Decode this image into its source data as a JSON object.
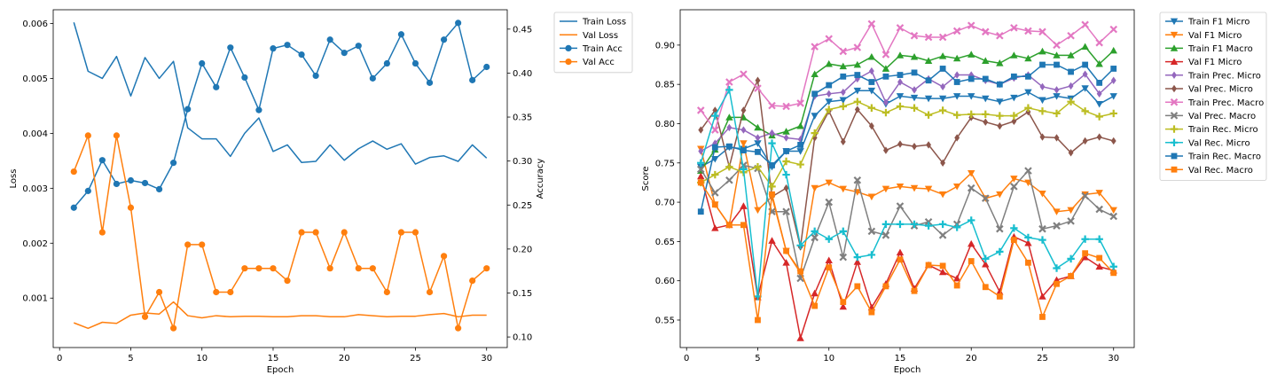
{
  "chart_data": [
    {
      "type": "line",
      "xlabel": "Epoch",
      "ylabel": "Loss",
      "y2label": "Accuracy",
      "xlim": [
        -0.45,
        31.45
      ],
      "ylim": [
        0.0001,
        0.00625
      ],
      "y2lim": [
        0.088,
        0.472
      ],
      "x_ticks": [
        0,
        5,
        10,
        15,
        20,
        25,
        30
      ],
      "y_ticks": [
        0.001,
        0.002,
        0.003,
        0.004,
        0.005,
        0.006
      ],
      "y_tick_labels": [
        "0.001",
        "0.002",
        "0.003",
        "0.004",
        "0.005",
        "0.006"
      ],
      "y2_ticks": [
        0.1,
        0.15,
        0.2,
        0.25,
        0.3,
        0.35,
        0.4,
        0.45
      ],
      "y2_tick_labels": [
        "0.10",
        "0.15",
        "0.20",
        "0.25",
        "0.30",
        "0.35",
        "0.40",
        "0.45"
      ],
      "legend_position": "outside right, top",
      "grid": false,
      "x": [
        1,
        2,
        3,
        4,
        5,
        6,
        7,
        8,
        9,
        10,
        11,
        12,
        13,
        14,
        15,
        16,
        17,
        18,
        19,
        20,
        21,
        22,
        23,
        24,
        25,
        26,
        27,
        28,
        29,
        30
      ],
      "series": [
        {
          "name": "Train Loss",
          "axis": "left",
          "color": "#1f77b4",
          "marker": "none",
          "values": [
            0.00602,
            0.00513,
            0.005,
            0.0054,
            0.00468,
            0.00538,
            0.005,
            0.00531,
            0.0041,
            0.0039,
            0.0039,
            0.00358,
            0.004,
            0.00428,
            0.00367,
            0.00379,
            0.00347,
            0.00349,
            0.00379,
            0.00351,
            0.00372,
            0.00386,
            0.00371,
            0.00381,
            0.00344,
            0.00356,
            0.00359,
            0.00349,
            0.00379,
            0.00355
          ]
        },
        {
          "name": "Val Loss",
          "axis": "left",
          "color": "#ff7f0e",
          "marker": "none",
          "values": [
            0.00055,
            0.00045,
            0.00056,
            0.00054,
            0.00069,
            0.00073,
            0.00071,
            0.00093,
            0.00068,
            0.00064,
            0.00068,
            0.00066,
            0.00067,
            0.00067,
            0.00066,
            0.00066,
            0.00068,
            0.00068,
            0.00066,
            0.00066,
            0.0007,
            0.00068,
            0.00066,
            0.00067,
            0.00067,
            0.0007,
            0.00072,
            0.00066,
            0.00069,
            0.00069
          ]
        },
        {
          "name": "Train Acc",
          "axis": "right",
          "color": "#1f77b4",
          "marker": "circle",
          "values": [
            0.247,
            0.266,
            0.301,
            0.274,
            0.278,
            0.275,
            0.268,
            0.298,
            0.359,
            0.411,
            0.384,
            0.429,
            0.395,
            0.358,
            0.428,
            0.432,
            0.421,
            0.397,
            0.438,
            0.423,
            0.431,
            0.394,
            0.411,
            0.444,
            0.411,
            0.389,
            0.438,
            0.457,
            0.392,
            0.407
          ]
        },
        {
          "name": "Val Acc",
          "axis": "right",
          "color": "#ff7f0e",
          "marker": "circle",
          "values": [
            0.288,
            0.329,
            0.219,
            0.329,
            0.247,
            0.123,
            0.151,
            0.11,
            0.205,
            0.205,
            0.151,
            0.151,
            0.178,
            0.178,
            0.178,
            0.164,
            0.219,
            0.219,
            0.178,
            0.219,
            0.178,
            0.178,
            0.151,
            0.219,
            0.219,
            0.151,
            0.192,
            0.11,
            0.164,
            0.178
          ]
        }
      ]
    },
    {
      "type": "line",
      "xlabel": "Epoch",
      "ylabel": "Score",
      "xlim": [
        -0.45,
        31.45
      ],
      "ylim": [
        0.515,
        0.945
      ],
      "x_ticks": [
        0,
        5,
        10,
        15,
        20,
        25,
        30
      ],
      "y_ticks": [
        0.55,
        0.6,
        0.65,
        0.7,
        0.75,
        0.8,
        0.85,
        0.9
      ],
      "y_tick_labels": [
        "0.55",
        "0.60",
        "0.65",
        "0.70",
        "0.75",
        "0.80",
        "0.85",
        "0.90"
      ],
      "legend_position": "outside right, top",
      "grid": false,
      "x": [
        1,
        2,
        3,
        4,
        5,
        6,
        7,
        8,
        9,
        10,
        11,
        12,
        13,
        14,
        15,
        16,
        17,
        18,
        19,
        20,
        21,
        22,
        23,
        24,
        25,
        26,
        27,
        28,
        29,
        30
      ],
      "series": [
        {
          "name": "Train F1 Micro",
          "color": "#1f77b4",
          "marker": "tri-down",
          "values": [
            0.745,
            0.755,
            0.77,
            0.768,
            0.775,
            0.745,
            0.765,
            0.765,
            0.81,
            0.828,
            0.83,
            0.842,
            0.842,
            0.825,
            0.835,
            0.833,
            0.832,
            0.832,
            0.835,
            0.835,
            0.832,
            0.828,
            0.833,
            0.84,
            0.83,
            0.835,
            0.832,
            0.845,
            0.825,
            0.835
          ]
        },
        {
          "name": "Val F1 Micro",
          "color": "#ff7f0e",
          "marker": "tri-down",
          "values": [
            0.768,
            0.697,
            0.671,
            0.775,
            0.69,
            0.707,
            0.638,
            0.61,
            0.718,
            0.725,
            0.717,
            0.713,
            0.707,
            0.717,
            0.72,
            0.718,
            0.717,
            0.71,
            0.72,
            0.737,
            0.705,
            0.71,
            0.73,
            0.725,
            0.711,
            0.688,
            0.69,
            0.71,
            0.712,
            0.69
          ]
        },
        {
          "name": "Train F1 Macro",
          "color": "#2ca02c",
          "marker": "tri-up",
          "values": [
            0.74,
            0.767,
            0.808,
            0.808,
            0.795,
            0.785,
            0.79,
            0.797,
            0.863,
            0.876,
            0.873,
            0.875,
            0.885,
            0.87,
            0.887,
            0.885,
            0.88,
            0.886,
            0.883,
            0.888,
            0.88,
            0.877,
            0.887,
            0.883,
            0.892,
            0.887,
            0.887,
            0.898,
            0.876,
            0.893
          ]
        },
        {
          "name": "Val F1 Micro",
          "color": "#d62728",
          "marker": "tri-up",
          "values": [
            0.733,
            0.667,
            0.671,
            0.695,
            0.579,
            0.651,
            0.623,
            0.527,
            0.584,
            0.626,
            0.567,
            0.624,
            0.566,
            0.596,
            0.636,
            0.59,
            0.62,
            0.611,
            0.603,
            0.647,
            0.621,
            0.586,
            0.656,
            0.648,
            0.58,
            0.601,
            0.606,
            0.63,
            0.618,
            0.613
          ]
        },
        {
          "name": "Train Prec. Micro",
          "color": "#9467bd",
          "marker": "diamond",
          "values": [
            0.765,
            0.775,
            0.795,
            0.792,
            0.782,
            0.788,
            0.782,
            0.78,
            0.835,
            0.838,
            0.84,
            0.857,
            0.867,
            0.827,
            0.853,
            0.843,
            0.857,
            0.847,
            0.862,
            0.862,
            0.855,
            0.85,
            0.858,
            0.862,
            0.847,
            0.843,
            0.848,
            0.863,
            0.838,
            0.855
          ]
        },
        {
          "name": "Val Prec. Micro",
          "color": "#8c564b",
          "marker": "diamond",
          "values": [
            0.792,
            0.817,
            0.745,
            0.817,
            0.855,
            0.707,
            0.718,
            0.643,
            0.782,
            0.816,
            0.777,
            0.818,
            0.797,
            0.766,
            0.774,
            0.771,
            0.773,
            0.75,
            0.782,
            0.808,
            0.802,
            0.797,
            0.803,
            0.815,
            0.783,
            0.782,
            0.763,
            0.778,
            0.783,
            0.778
          ]
        },
        {
          "name": "Train Prec. Macro",
          "color": "#e377c2",
          "marker": "x",
          "values": [
            0.817,
            0.792,
            0.853,
            0.863,
            0.845,
            0.823,
            0.822,
            0.826,
            0.898,
            0.908,
            0.892,
            0.897,
            0.927,
            0.888,
            0.922,
            0.912,
            0.91,
            0.91,
            0.918,
            0.925,
            0.917,
            0.912,
            0.922,
            0.918,
            0.917,
            0.9,
            0.912,
            0.926,
            0.903,
            0.92
          ]
        },
        {
          "name": "Val Prec. Macro",
          "color": "#7f7f7f",
          "marker": "x",
          "values": [
            0.742,
            0.712,
            0.728,
            0.747,
            0.743,
            0.688,
            0.688,
            0.603,
            0.655,
            0.7,
            0.63,
            0.728,
            0.663,
            0.658,
            0.695,
            0.67,
            0.675,
            0.658,
            0.672,
            0.718,
            0.705,
            0.666,
            0.72,
            0.74,
            0.666,
            0.67,
            0.676,
            0.708,
            0.691,
            0.682
          ]
        },
        {
          "name": "Train Rec. Micro",
          "color": "#bcbd22",
          "marker": "plus",
          "values": [
            0.725,
            0.735,
            0.745,
            0.738,
            0.745,
            0.72,
            0.752,
            0.748,
            0.788,
            0.818,
            0.822,
            0.828,
            0.82,
            0.814,
            0.822,
            0.82,
            0.811,
            0.817,
            0.811,
            0.812,
            0.812,
            0.81,
            0.81,
            0.82,
            0.816,
            0.813,
            0.828,
            0.816,
            0.809,
            0.813
          ]
        },
        {
          "name": "Val Rec. Micro",
          "color": "#17becf",
          "marker": "plus",
          "values": [
            0.75,
            0.81,
            0.843,
            0.742,
            0.58,
            0.775,
            0.735,
            0.645,
            0.663,
            0.653,
            0.663,
            0.63,
            0.633,
            0.672,
            0.672,
            0.672,
            0.67,
            0.672,
            0.668,
            0.677,
            0.628,
            0.637,
            0.667,
            0.655,
            0.652,
            0.616,
            0.628,
            0.653,
            0.653,
            0.618
          ]
        },
        {
          "name": "Train Rec. Macro",
          "color": "#1f77b4",
          "marker": "square",
          "values": [
            0.688,
            0.77,
            0.771,
            0.766,
            0.764,
            0.747,
            0.765,
            0.773,
            0.838,
            0.849,
            0.86,
            0.862,
            0.853,
            0.86,
            0.862,
            0.865,
            0.855,
            0.87,
            0.853,
            0.857,
            0.857,
            0.85,
            0.86,
            0.86,
            0.875,
            0.875,
            0.866,
            0.875,
            0.852,
            0.87
          ]
        },
        {
          "name": "Val Rec. Macro",
          "color": "#ff7f0e",
          "marker": "square",
          "values": [
            0.725,
            0.697,
            0.671,
            0.671,
            0.55,
            0.71,
            0.638,
            0.612,
            0.568,
            0.617,
            0.573,
            0.593,
            0.56,
            0.593,
            0.627,
            0.587,
            0.62,
            0.619,
            0.594,
            0.625,
            0.592,
            0.58,
            0.652,
            0.623,
            0.554,
            0.596,
            0.606,
            0.635,
            0.629,
            0.61
          ]
        }
      ]
    }
  ]
}
